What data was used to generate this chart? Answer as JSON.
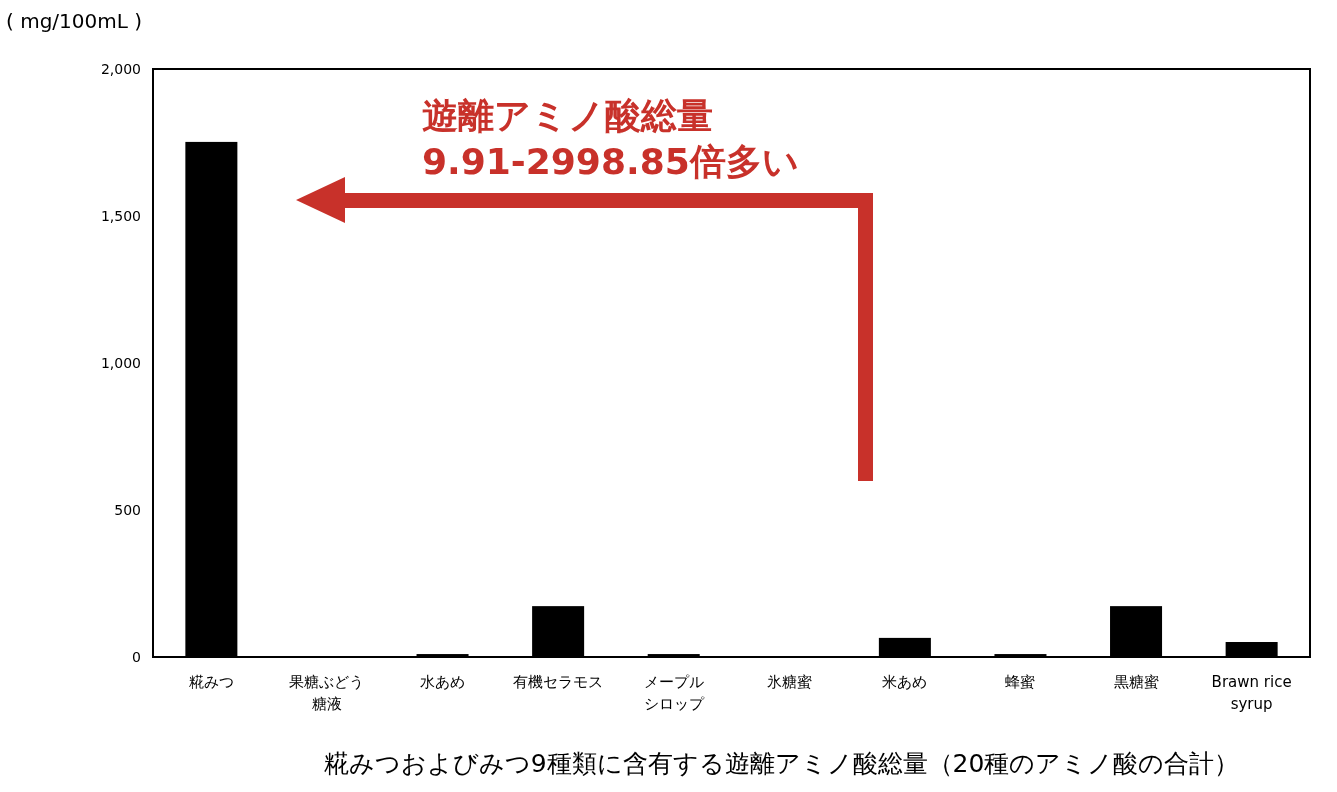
{
  "chart_data": {
    "type": "bar",
    "title": "糀みつおよびみつ9種類に含有する遊離アミノ酸総量（20種のアミノ酸の合計）",
    "ylabel": "( mg/100mL )",
    "categories": [
      "糀みつ",
      "果糖ぶどう糖液",
      "水あめ",
      "有機セラモス",
      "メープルシロップ",
      "氷糖蜜",
      "米あめ",
      "蜂蜜",
      "黒糖蜜",
      "Brawn rice syrup"
    ],
    "values": [
      1752,
      1,
      10,
      173,
      10,
      1,
      65,
      10,
      173,
      51
    ],
    "color": "#000000",
    "ylim": [
      0,
      2000
    ],
    "yticks": [
      {
        "value": 0,
        "label": "0"
      },
      {
        "value": 500,
        "label": "500"
      },
      {
        "value": 1000,
        "label": "1,000"
      },
      {
        "value": 1500,
        "label": "1,500"
      },
      {
        "value": 2000,
        "label": "2,000"
      }
    ],
    "annotations": [
      "遊離アミノ酸総量\n9.91-2998.85倍多い"
    ],
    "grid": false
  }
}
